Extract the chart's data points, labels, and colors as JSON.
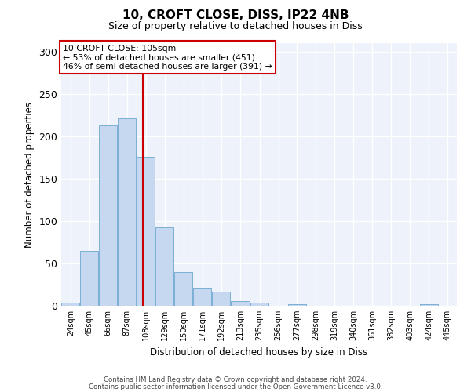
{
  "title1": "10, CROFT CLOSE, DISS, IP22 4NB",
  "title2": "Size of property relative to detached houses in Diss",
  "xlabel": "Distribution of detached houses by size in Diss",
  "ylabel": "Number of detached properties",
  "bin_labels": [
    "24sqm",
    "45sqm",
    "66sqm",
    "87sqm",
    "108sqm",
    "129sqm",
    "150sqm",
    "171sqm",
    "192sqm",
    "213sqm",
    "235sqm",
    "256sqm",
    "277sqm",
    "298sqm",
    "319sqm",
    "340sqm",
    "361sqm",
    "382sqm",
    "403sqm",
    "424sqm",
    "445sqm"
  ],
  "bin_edges": [
    13.5,
    34.5,
    55.5,
    76.5,
    97.5,
    118.5,
    139.5,
    160.5,
    181.5,
    202.5,
    224.5,
    245.5,
    266.5,
    287.5,
    308.5,
    329.5,
    350.5,
    371.5,
    392.5,
    413.5,
    434.5,
    455.5
  ],
  "counts": [
    4,
    65,
    213,
    221,
    176,
    93,
    40,
    21,
    17,
    6,
    4,
    0,
    2,
    0,
    0,
    0,
    0,
    0,
    0,
    2,
    0
  ],
  "bar_color": "#c5d8f0",
  "bar_edge_color": "#7bafd4",
  "vline_x": 105,
  "vline_color": "#cc0000",
  "annotation_text": "10 CROFT CLOSE: 105sqm\n← 53% of detached houses are smaller (451)\n46% of semi-detached houses are larger (391) →",
  "annotation_box_color": "#ffffff",
  "annotation_box_edge_color": "#cc0000",
  "ylim": [
    0,
    310
  ],
  "yticks": [
    0,
    50,
    100,
    150,
    200,
    250,
    300
  ],
  "footer1": "Contains HM Land Registry data © Crown copyright and database right 2024.",
  "footer2": "Contains public sector information licensed under the Open Government Licence v3.0.",
  "bg_color": "#ffffff",
  "plot_bg_color": "#edf2fb"
}
